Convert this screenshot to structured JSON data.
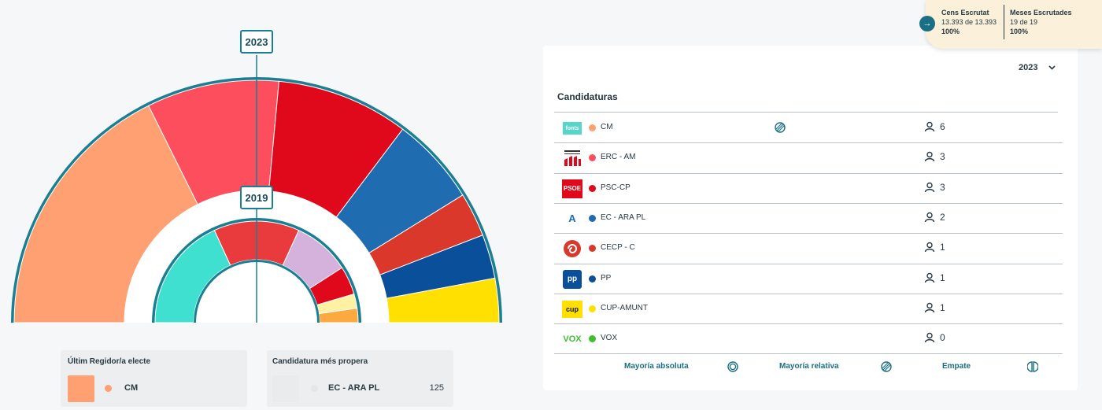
{
  "chart_data": {
    "type": "hemicycle",
    "rings": [
      {
        "year": "2023",
        "seats": [
          {
            "party": "CM",
            "seats": 6,
            "color": "#fea071"
          },
          {
            "party": "ERC - AM",
            "seats": 3,
            "color": "#fd4e5e"
          },
          {
            "party": "PSC-CP",
            "seats": 3,
            "color": "#e0091c"
          },
          {
            "party": "EC - ARA PL",
            "seats": 2,
            "color": "#1f6cb0"
          },
          {
            "party": "CECP - C",
            "seats": 1,
            "color": "#d9382a"
          },
          {
            "party": "PP",
            "seats": 1,
            "color": "#0a4f9a"
          },
          {
            "party": "CUP-AMUNT",
            "seats": 1,
            "color": "#ffe000"
          }
        ]
      },
      {
        "year": "2019",
        "seats": [
          {
            "seats": 4,
            "color": "#40e0d0"
          },
          {
            "seats": 3,
            "color": "#e93a3e"
          },
          {
            "seats": 2,
            "color": "#d5b2dc"
          },
          {
            "seats": 1,
            "color": "#e0091c"
          },
          {
            "seats": 0.5,
            "color": "#fff1a3"
          },
          {
            "seats": 0.5,
            "color": "#fcaa3f"
          }
        ]
      }
    ]
  },
  "last_elected": {
    "caption": "Últim Regidor/a electe",
    "party": "CM",
    "color": "#fea071"
  },
  "closest": {
    "caption": "Candidatura més propera",
    "party": "EC - ARA PL",
    "value": "125"
  },
  "panel": {
    "year_selected": "2023",
    "title": "Candidaturas",
    "parties": [
      {
        "name": "CM",
        "seats": "6",
        "color": "#fea071",
        "logo": "fonts",
        "majority": "relative"
      },
      {
        "name": "ERC - AM",
        "seats": "3",
        "color": "#fd4e5e",
        "logo": "erc"
      },
      {
        "name": "PSC-CP",
        "seats": "3",
        "color": "#e0091c",
        "logo": "PSOE"
      },
      {
        "name": "EC - ARA PL",
        "seats": "2",
        "color": "#1f6cb0",
        "logo": "A"
      },
      {
        "name": "CECP - C",
        "seats": "1",
        "color": "#d9382a",
        "logo": "spiral"
      },
      {
        "name": "PP",
        "seats": "1",
        "color": "#0a4f9a",
        "logo": "pp"
      },
      {
        "name": "CUP-AMUNT",
        "seats": "1",
        "color": "#ffe000",
        "logo": "cup"
      },
      {
        "name": "VOX",
        "seats": "0",
        "color": "#3dbf2e",
        "logo": "VOX"
      }
    ],
    "legend": {
      "absolute": "Mayoría absoluta",
      "relative": "Mayoría relativa",
      "tie": "Empate"
    }
  },
  "stats": {
    "census_label": "Cens Escrutat",
    "census_detail": "13.393 de 13.393",
    "census_pct": "100%",
    "tables_label": "Meses Escrutades",
    "tables_detail": "19 de 19",
    "tables_pct": "100%"
  },
  "logo_texts": {
    "fonts": "fonts",
    "psoe": "PSOE",
    "ara": "A",
    "pp": "pp",
    "cup": "cup",
    "vox": "VOX"
  }
}
